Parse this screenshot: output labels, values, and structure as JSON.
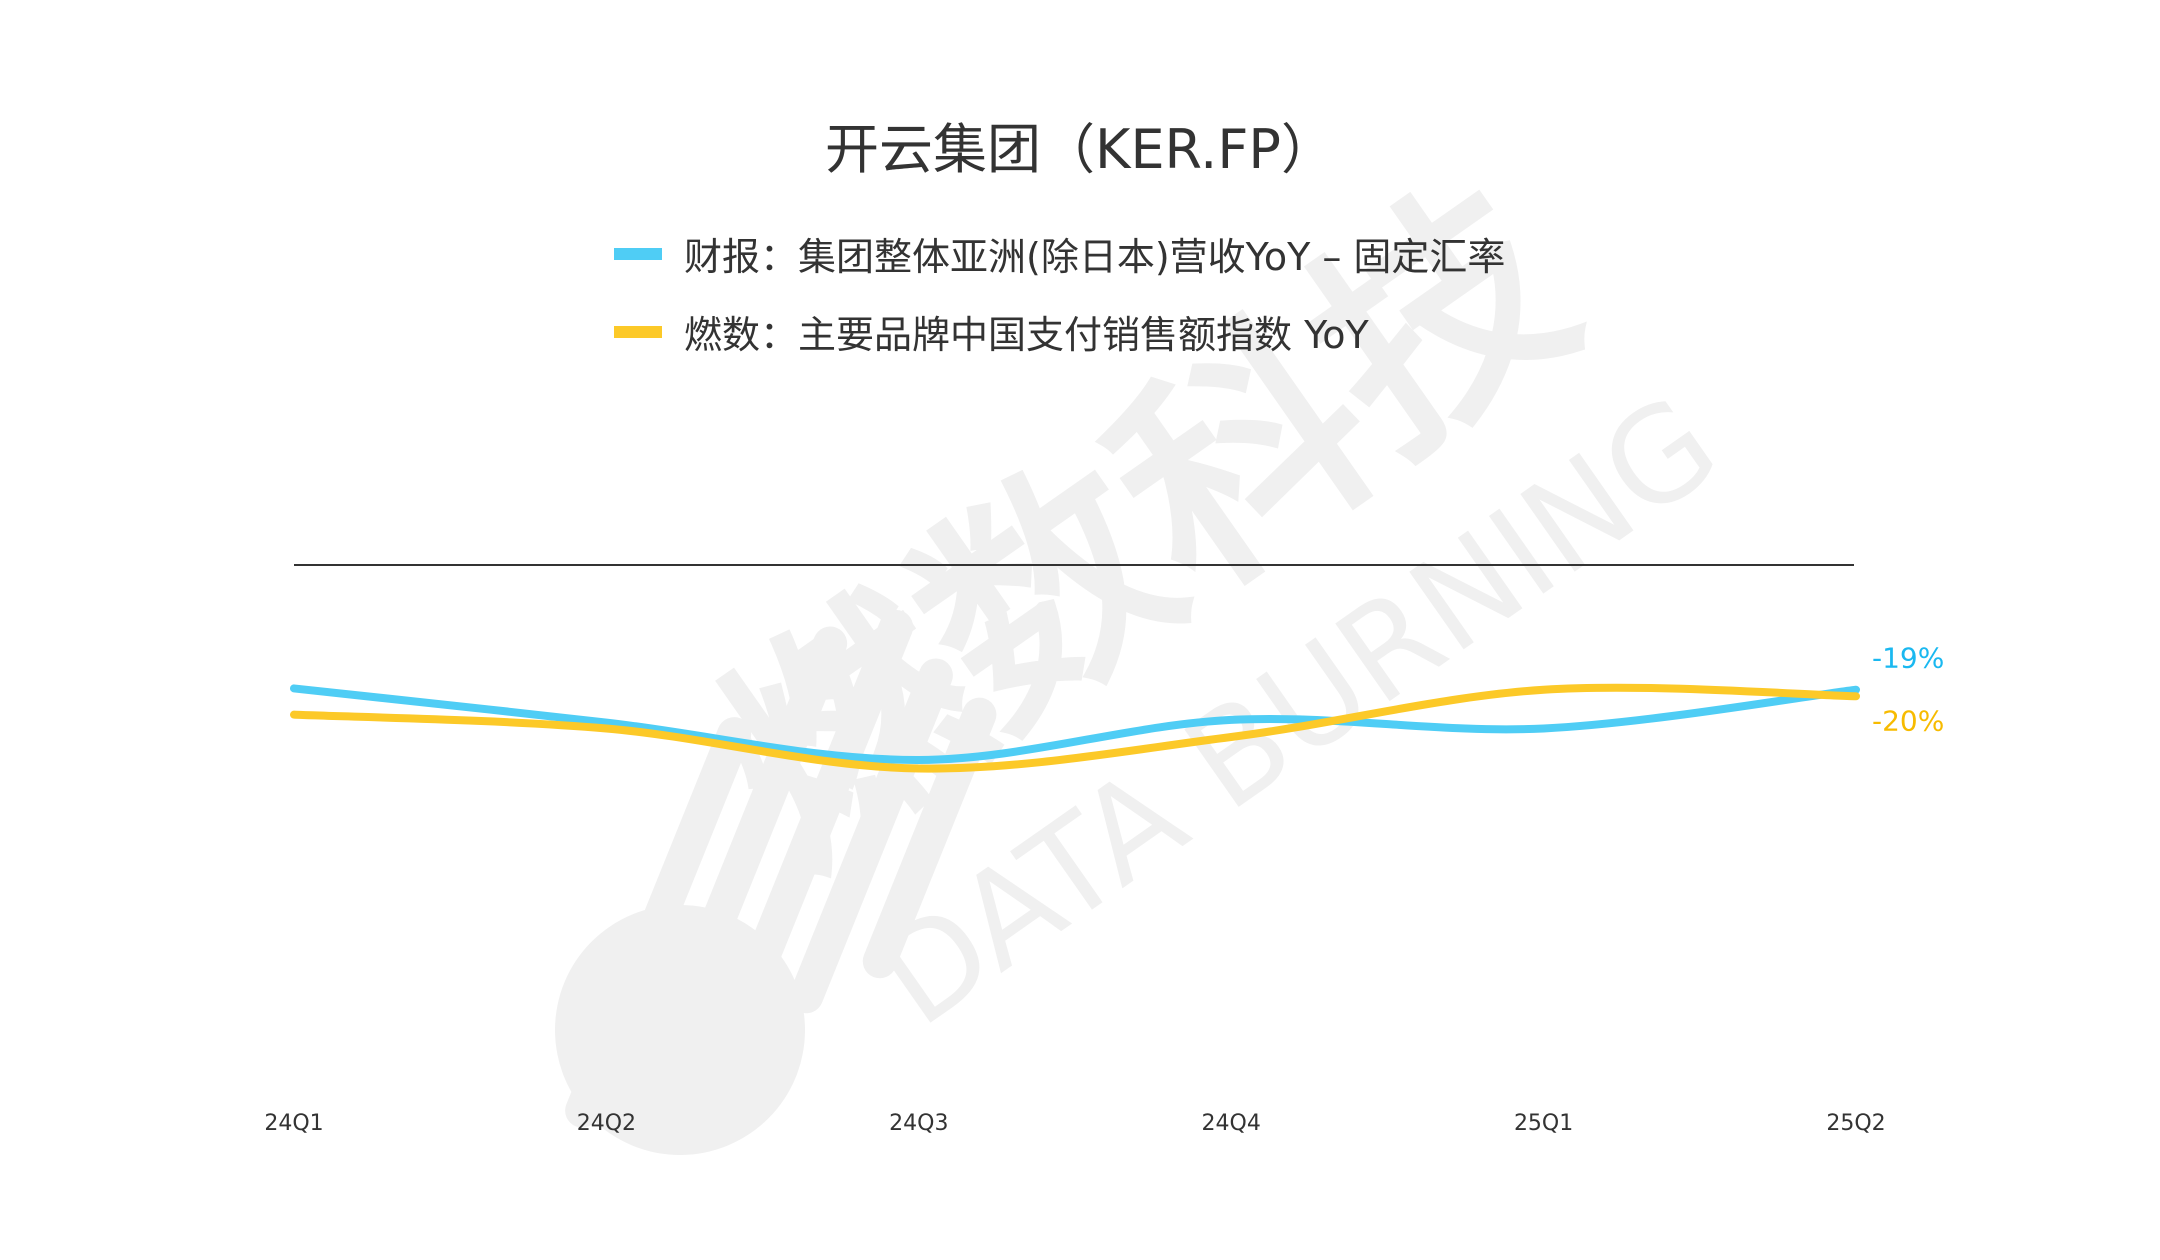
{
  "chart_data": {
    "type": "line",
    "title": "开云集团（KER.FP）",
    "categories": [
      "24Q1",
      "24Q2",
      "24Q3",
      "24Q4",
      "25Q1",
      "25Q2"
    ],
    "series": [
      {
        "name": "财报：集团整体亚洲(除日本)营收YoY – 固定汇率",
        "color": "#4fcdf5",
        "label_color": "#1ab8f0",
        "values": [
          -18.8,
          -24.0,
          -29.7,
          -23.6,
          -24.9,
          -19
        ],
        "end_label": "-19%"
      },
      {
        "name": "燃数：主要品牌中国支付销售额指数 YoY",
        "color": "#fcc928",
        "label_color": "#f7bb00",
        "values": [
          -22.8,
          -24.9,
          -31.0,
          -26.2,
          -19.0,
          -20
        ],
        "end_label": "-20%"
      }
    ],
    "xlabel": "",
    "ylabel": "",
    "ylim": [
      -85,
      0
    ],
    "grid": false,
    "legend_position": "top"
  },
  "watermark": {
    "cn": "燃数科技",
    "en": "DATA BURNING"
  }
}
